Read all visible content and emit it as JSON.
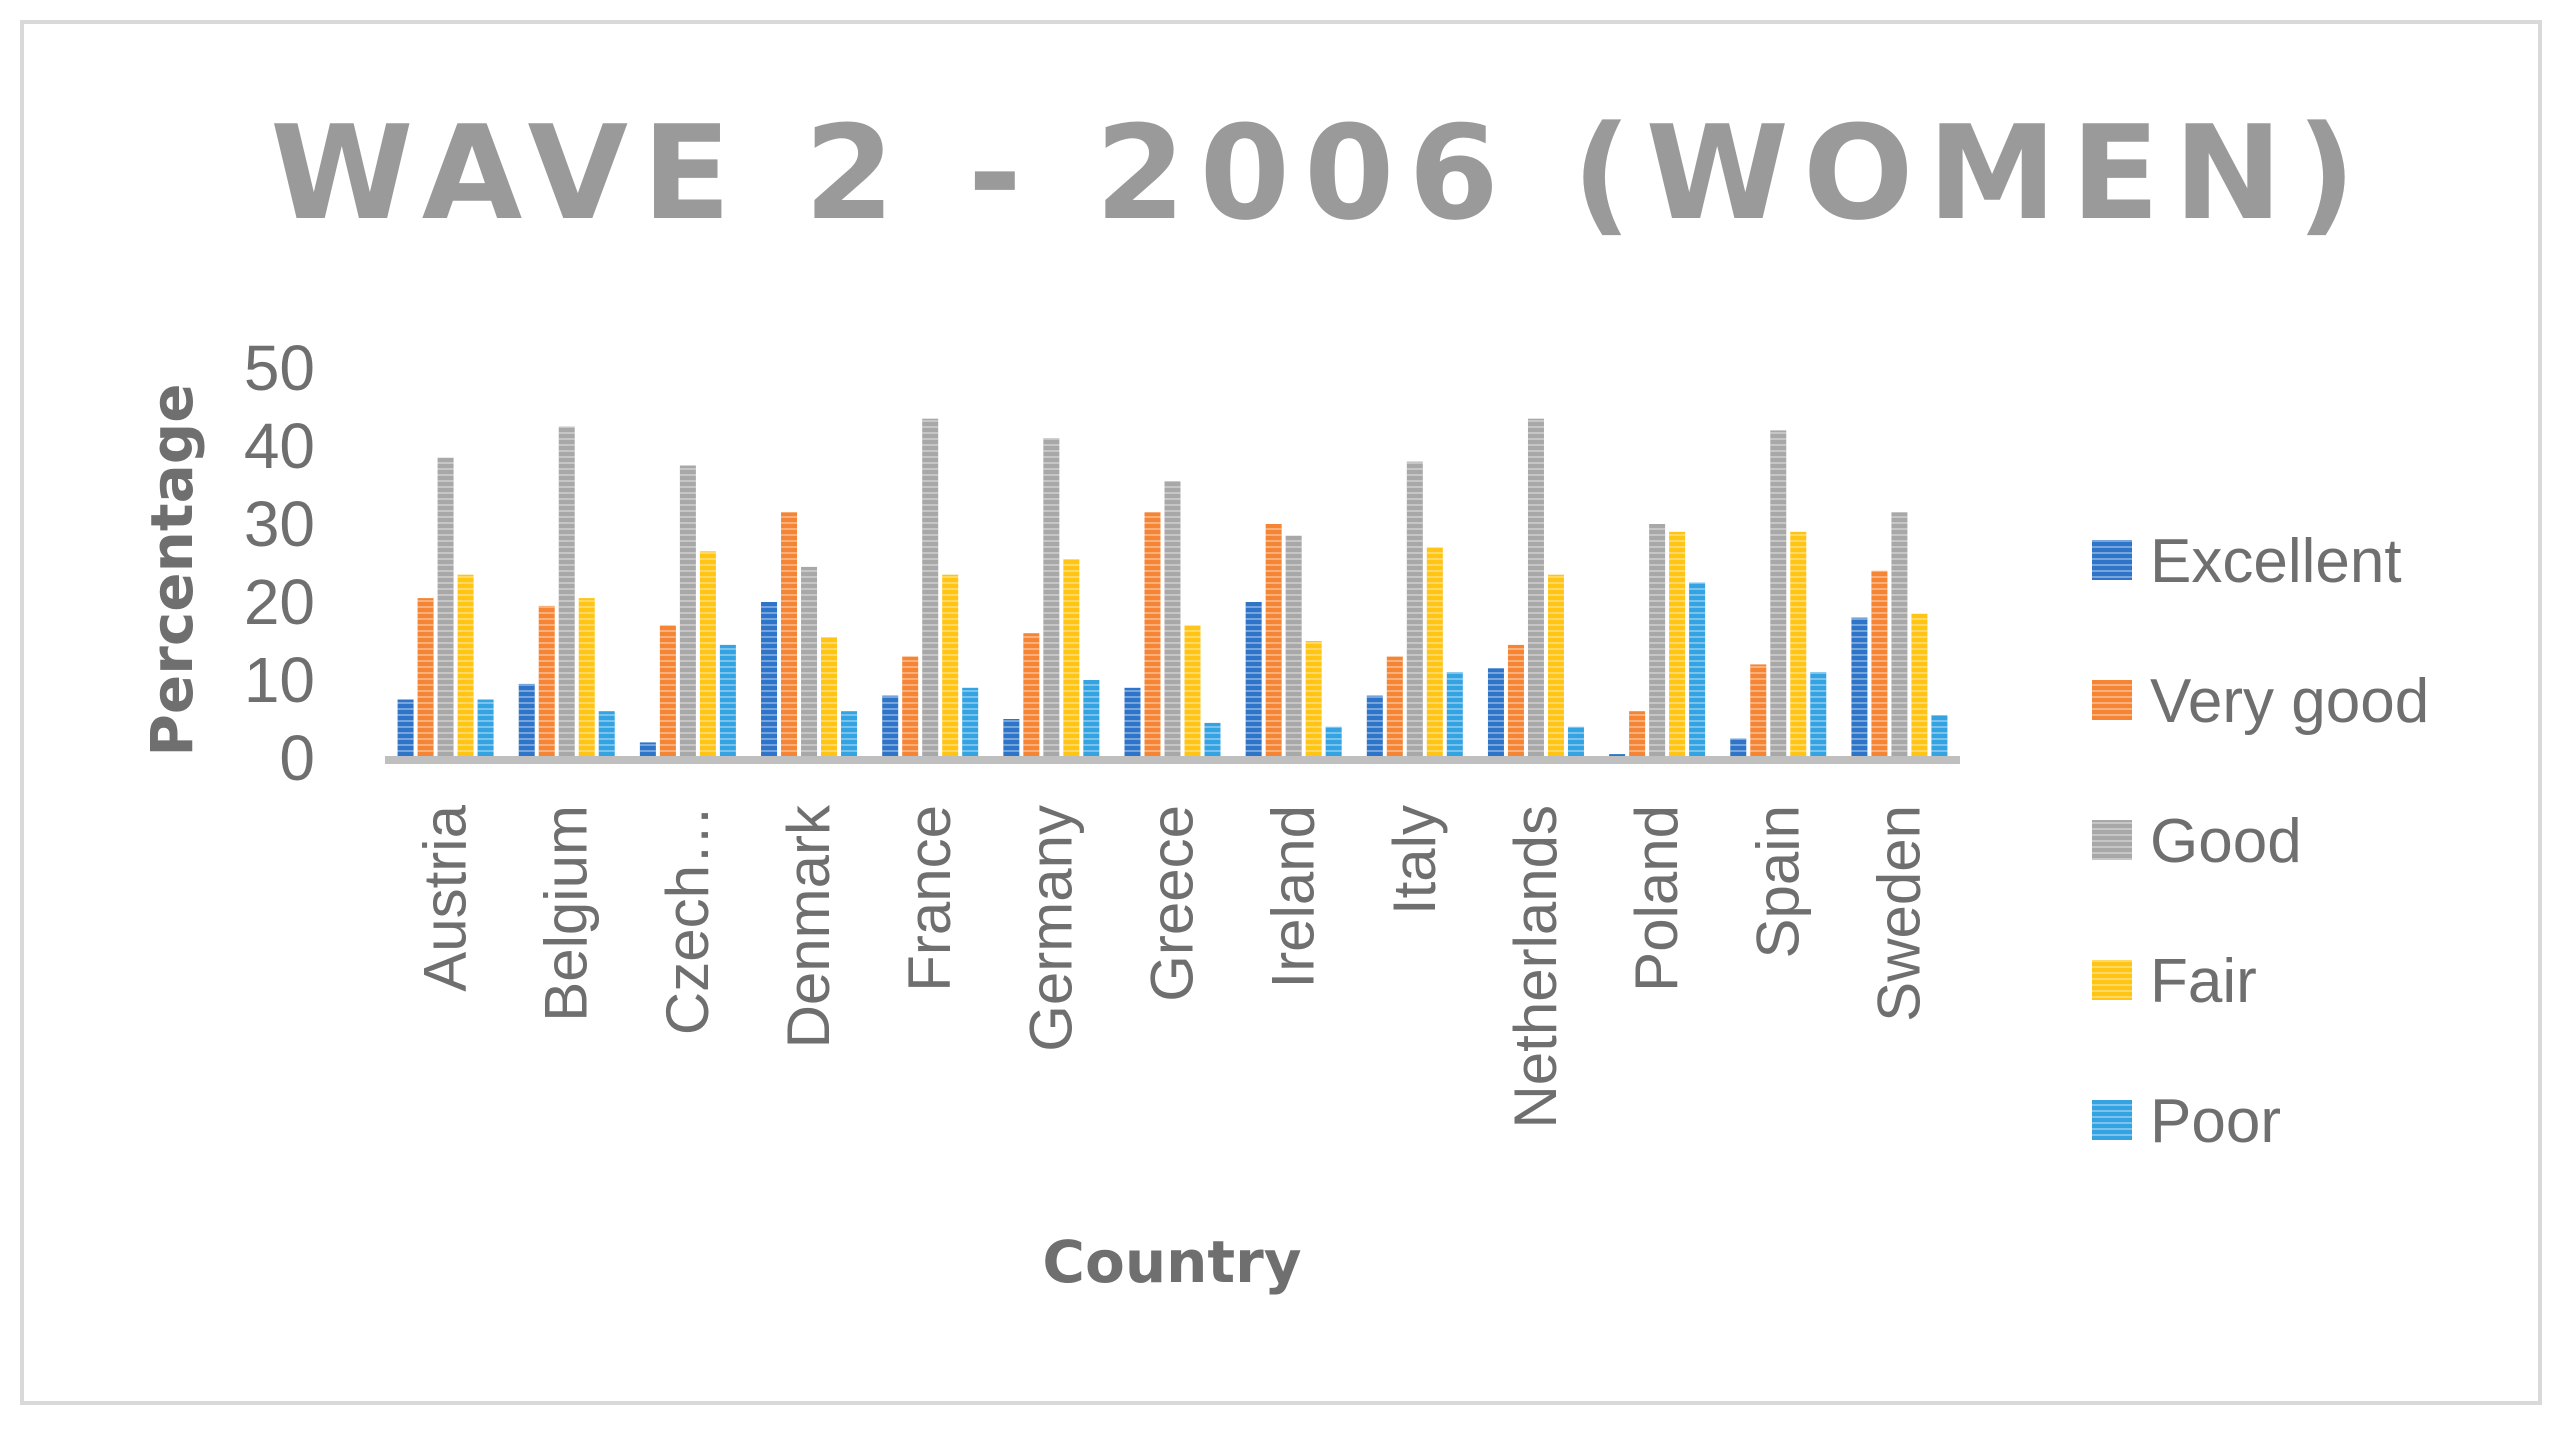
{
  "chart_data": {
    "type": "bar",
    "title": "WAVE 2 - 2006 (WOMEN)",
    "xlabel": "Country",
    "ylabel": "Percentage",
    "ylim": [
      0,
      50
    ],
    "yticks": [
      0,
      10,
      20,
      30,
      40,
      50
    ],
    "grid": false,
    "legend_position": "right",
    "categories": [
      "Austria",
      "Belgium",
      "Czech…",
      "Denmark",
      "France",
      "Germany",
      "Greece",
      "Ireland",
      "Italy",
      "Netherlands",
      "Poland",
      "Spain",
      "Sweden"
    ],
    "series": [
      {
        "name": "Excellent",
        "color": "#2e75c9",
        "values": [
          7.5,
          9.5,
          2,
          20,
          8,
          5,
          9,
          20,
          8,
          11.5,
          0.5,
          2.5,
          18
        ]
      },
      {
        "name": "Very good",
        "color": "#f58535",
        "values": [
          20.5,
          19.5,
          17,
          31.5,
          13,
          16,
          31.5,
          30,
          13,
          14.5,
          6,
          12,
          24
        ]
      },
      {
        "name": "Good",
        "color": "#a8a8a8",
        "values": [
          38.5,
          42.5,
          37.5,
          24.5,
          43.5,
          41,
          35.5,
          28.5,
          38,
          43.5,
          30,
          42,
          31.5
        ]
      },
      {
        "name": "Fair",
        "color": "#ffc414",
        "values": [
          23.5,
          20.5,
          26.5,
          15.5,
          23.5,
          25.5,
          17,
          15,
          27,
          23.5,
          29,
          29,
          18.5
        ]
      },
      {
        "name": "Poor",
        "color": "#34a3e2",
        "values": [
          7.5,
          6,
          14.5,
          6,
          9,
          10,
          4.5,
          4,
          11,
          4,
          22.5,
          11,
          5.5
        ]
      }
    ]
  }
}
